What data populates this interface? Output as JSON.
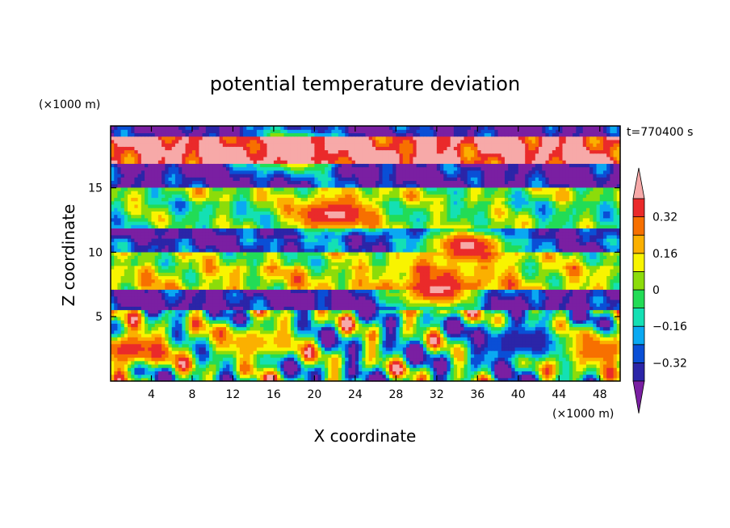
{
  "chart_data": {
    "type": "heatmap",
    "title": "potential temperature deviation",
    "xlabel": "X coordinate",
    "ylabel": "Z coordinate",
    "x_unit": "(×1000 m)",
    "y_unit": "(×1000 m)",
    "time_label": "t=770400 s",
    "xlim": [
      0,
      50
    ],
    "ylim": [
      0,
      19.8
    ],
    "x_ticks": [
      4,
      8,
      12,
      16,
      20,
      24,
      28,
      32,
      36,
      40,
      44,
      48
    ],
    "y_ticks": [
      5,
      10,
      15
    ],
    "colorbar": {
      "levels": [
        -0.4,
        -0.32,
        -0.24,
        -0.16,
        -0.08,
        0,
        0.08,
        0.16,
        0.24,
        0.32,
        0.4
      ],
      "tick_labels": [
        0.32,
        0.16,
        0,
        -0.16,
        -0.32
      ],
      "colors": [
        "#7a1fa2",
        "#2b25a8",
        "#0a4fd6",
        "#0aa9f2",
        "#14e0b4",
        "#22dc56",
        "#8cdc0a",
        "#f8f400",
        "#fbb000",
        "#f77000",
        "#ea2a2a",
        "#f7a9a8"
      ],
      "extend": "both"
    },
    "horizontal_bands": [
      {
        "z": [
          19.0,
          19.8
        ],
        "value": -0.42
      },
      {
        "z": [
          17.0,
          19.0
        ],
        "value": 0.42
      },
      {
        "z": [
          15.0,
          17.0
        ],
        "value": -0.42
      },
      {
        "z": [
          14.0,
          15.0
        ],
        "value": 0.02
      },
      {
        "z": [
          12.0,
          14.0
        ],
        "value": -0.05
      },
      {
        "z": [
          11.0,
          12.0
        ],
        "value": -0.42
      },
      {
        "z": [
          10.0,
          11.0
        ],
        "value": -0.34
      },
      {
        "z": [
          9.0,
          10.0
        ],
        "value": 0.02
      },
      {
        "z": [
          7.0,
          9.0
        ],
        "value": 0.1
      },
      {
        "z": [
          5.5,
          7.0
        ],
        "value": -0.42
      },
      {
        "z": [
          0.0,
          5.5
        ],
        "value": -0.1
      }
    ],
    "features": [
      {
        "x": 18,
        "z": 17.8,
        "value": 0.42
      },
      {
        "x": 35,
        "z": 10.5,
        "value": 0.42
      },
      {
        "x": 32,
        "z": 7.0,
        "value": 0.42
      },
      {
        "x": 22,
        "z": 13.0,
        "value": 0.42
      },
      {
        "x": 2,
        "z": 2.5,
        "value": 0.36
      },
      {
        "x": 47,
        "z": 2.5,
        "value": 0.36
      },
      {
        "x": 14,
        "z": 3.0,
        "value": 0.2
      },
      {
        "x": 40,
        "z": 3.0,
        "value": -0.38
      }
    ]
  }
}
